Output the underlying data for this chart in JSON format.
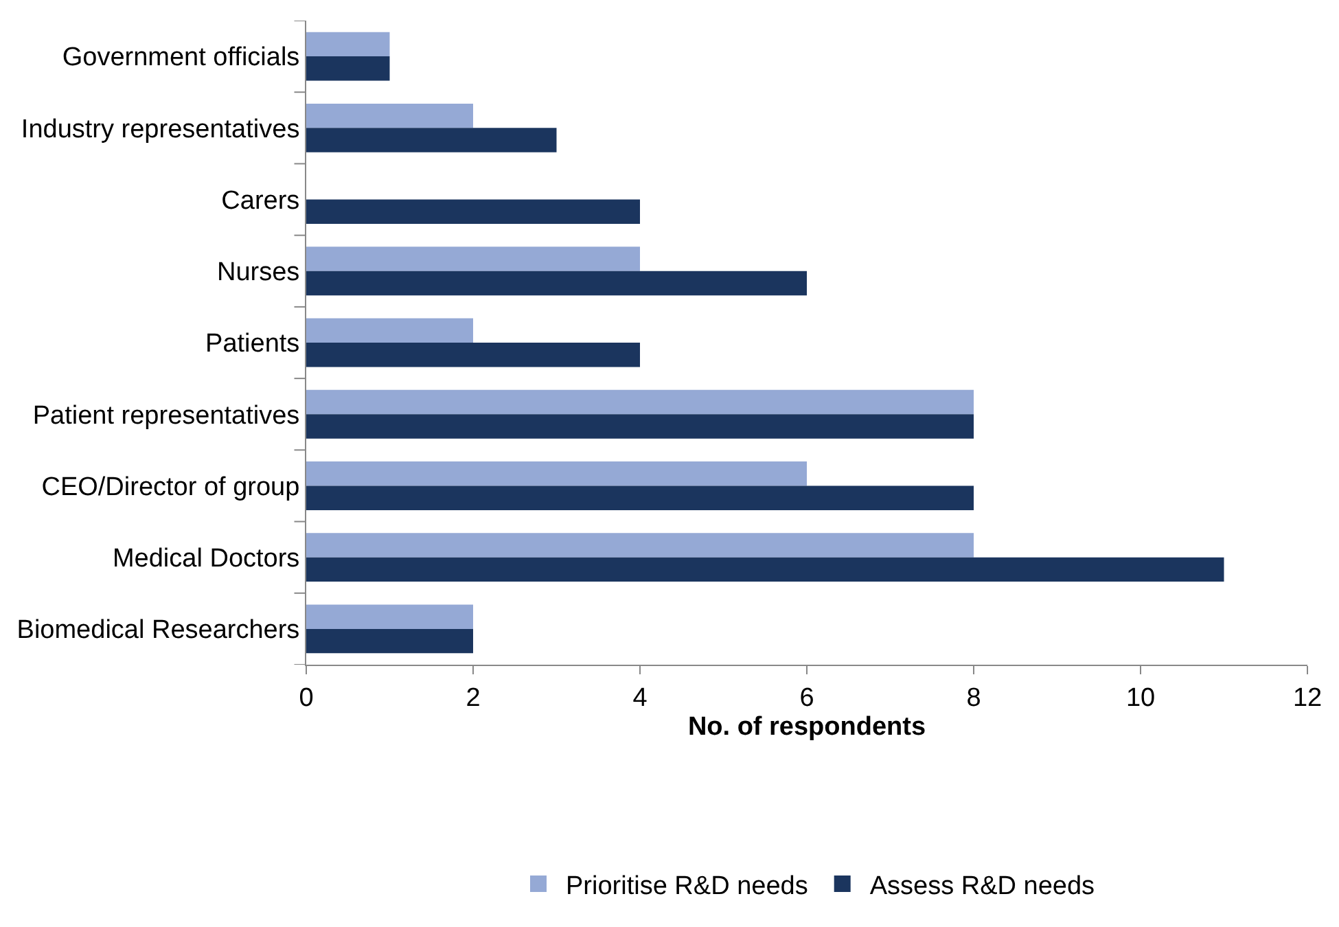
{
  "chart_data": {
    "type": "bar",
    "orientation": "horizontal",
    "xlabel": "No. of respondents",
    "categories": [
      "Government officials",
      "Industry representatives",
      "Carers",
      "Nurses",
      "Patients",
      "Patient representatives",
      "CEO/Director of group",
      "Medical Doctors",
      "Biomedical Researchers"
    ],
    "series": [
      {
        "name": "Prioritise R&D needs",
        "color": "#95a9d5",
        "values": [
          1,
          2,
          0,
          4,
          2,
          8,
          6,
          8,
          2
        ]
      },
      {
        "name": "Assess R&D needs",
        "color": "#1b355e",
        "values": [
          1,
          3,
          4,
          6,
          4,
          8,
          8,
          11,
          2
        ]
      }
    ],
    "xlim": [
      0,
      12
    ],
    "xticks": [
      0,
      2,
      4,
      6,
      8,
      10,
      12
    ],
    "legend": "bottom"
  }
}
